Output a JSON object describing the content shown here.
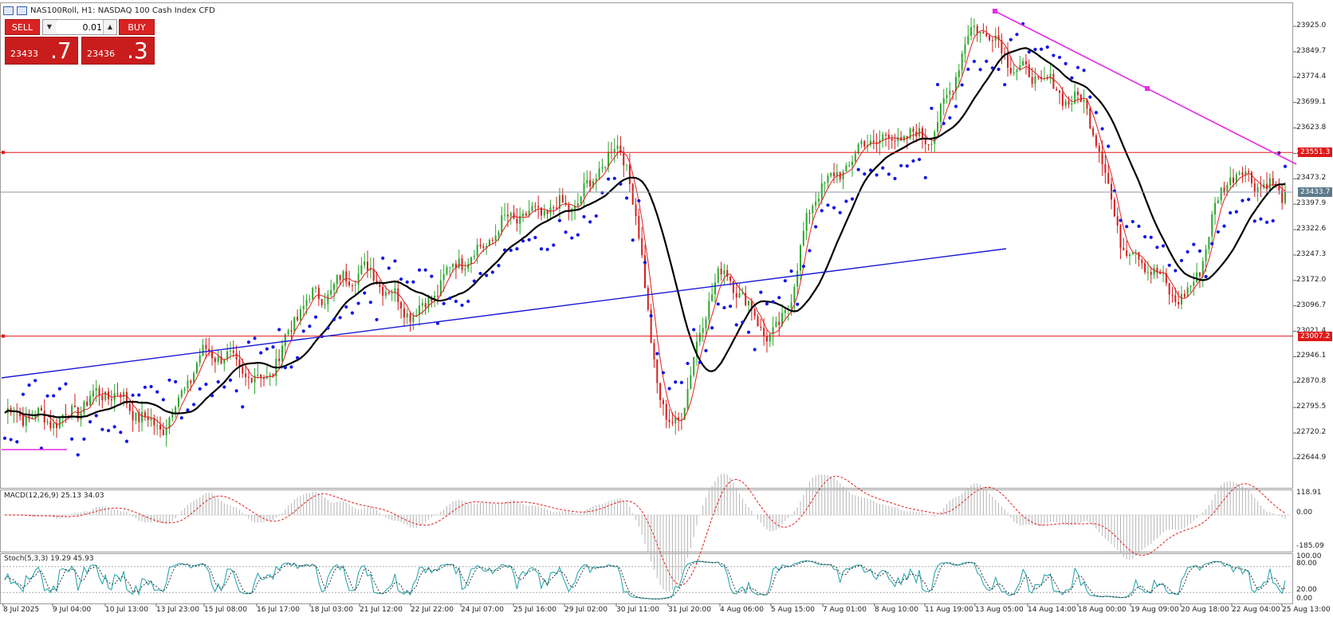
{
  "window": {
    "title": "NAS100Roll, H1:  NASDAQ 100 Cash Index CFD"
  },
  "trade_panel": {
    "sell_label": "SELL",
    "buy_label": "BUY",
    "lot_value": "0.01",
    "bid_small": "23433",
    "bid_big": ".7",
    "ask_small": "23436",
    "ask_big": ".3"
  },
  "price_axis": {
    "ticks": [
      "23925.0",
      "23849.7",
      "23774.4",
      "23699.1",
      "23623.8",
      "23548.5",
      "23473.2",
      "23397.9",
      "23322.6",
      "23247.3",
      "23172.0",
      "23096.7",
      "23021.4",
      "22946.1",
      "22870.8",
      "22795.5",
      "22720.2",
      "22644.9"
    ],
    "labels": {
      "resistance": "23551.3",
      "current": "23433.7",
      "support": "23007.2"
    }
  },
  "time_axis": {
    "labels": [
      "8 Jul 2025",
      "9 Jul 04:00",
      "10 Jul 13:00",
      "13 Jul 23:00",
      "15 Jul 08:00",
      "16 Jul 17:00",
      "18 Jul 03:00",
      "21 Jul 12:00",
      "22 Jul 22:00",
      "24 Jul 07:00",
      "25 Jul 16:00",
      "29 Jul 02:00",
      "30 Jul 11:00",
      "31 Jul 20:00",
      "4 Aug 06:00",
      "5 Aug 15:00",
      "7 Aug 01:00",
      "8 Aug 10:00",
      "11 Aug 19:00",
      "13 Aug 05:00",
      "14 Aug 14:00",
      "18 Aug 00:00",
      "19 Aug 09:00",
      "20 Aug 18:00",
      "22 Aug 04:00",
      "25 Aug 13:00"
    ]
  },
  "macd": {
    "title": "MACD(12,26,9) 25.13 34.03",
    "ticks": [
      "118.91",
      "0.00",
      "-185.09"
    ]
  },
  "stoch": {
    "title": "Stoch(5,3,3) 19.29 45.93",
    "ticks": [
      "100.00",
      "80.00",
      "20.00",
      "0.00"
    ]
  },
  "colors": {
    "bull": "#2ea62e",
    "bear": "#d11f1f",
    "sar": "#1414e6",
    "ma_slow": "#000000",
    "ma_fast": "#e02020",
    "trend_up": "#1a1ad6",
    "trend_down": "#e52ee5",
    "level": "#e01919",
    "current": "#5c7a8c"
  },
  "chart_data": {
    "type": "candlestick",
    "symbol": "NAS100Roll",
    "timeframe": "H1",
    "horizontal_levels": [
      23551.3,
      23007.2
    ],
    "current_price": 23433.7,
    "approx_close_path": [
      {
        "x": "8 Jul 2025",
        "y": 22780
      },
      {
        "x": "9 Jul 04:00",
        "y": 22760
      },
      {
        "x": "10 Jul 13:00",
        "y": 22840
      },
      {
        "x": "13 Jul 23:00",
        "y": 22740
      },
      {
        "x": "15 Jul 08:00",
        "y": 22960
      },
      {
        "x": "16 Jul 17:00",
        "y": 22880
      },
      {
        "x": "18 Jul 03:00",
        "y": 23120
      },
      {
        "x": "21 Jul 12:00",
        "y": 23200
      },
      {
        "x": "22 Jul 22:00",
        "y": 23080
      },
      {
        "x": "24 Jul 07:00",
        "y": 23240
      },
      {
        "x": "25 Jul 16:00",
        "y": 23360
      },
      {
        "x": "29 Jul 02:00",
        "y": 23390
      },
      {
        "x": "30 Jul 11:00",
        "y": 23560
      },
      {
        "x": "31 Jul 20:00",
        "y": 22740
      },
      {
        "x": "4 Aug 06:00",
        "y": 23190
      },
      {
        "x": "5 Aug 15:00",
        "y": 23010
      },
      {
        "x": "7 Aug 01:00",
        "y": 23460
      },
      {
        "x": "8 Aug 10:00",
        "y": 23590
      },
      {
        "x": "11 Aug 19:00",
        "y": 23600
      },
      {
        "x": "13 Aug 05:00",
        "y": 23920
      },
      {
        "x": "14 Aug 14:00",
        "y": 23780
      },
      {
        "x": "18 Aug 00:00",
        "y": 23700
      },
      {
        "x": "19 Aug 09:00",
        "y": 23250
      },
      {
        "x": "20 Aug 18:00",
        "y": 23120
      },
      {
        "x": "22 Aug 04:00",
        "y": 23490
      },
      {
        "x": "25 Aug 13:00",
        "y": 23433.7
      }
    ]
  }
}
